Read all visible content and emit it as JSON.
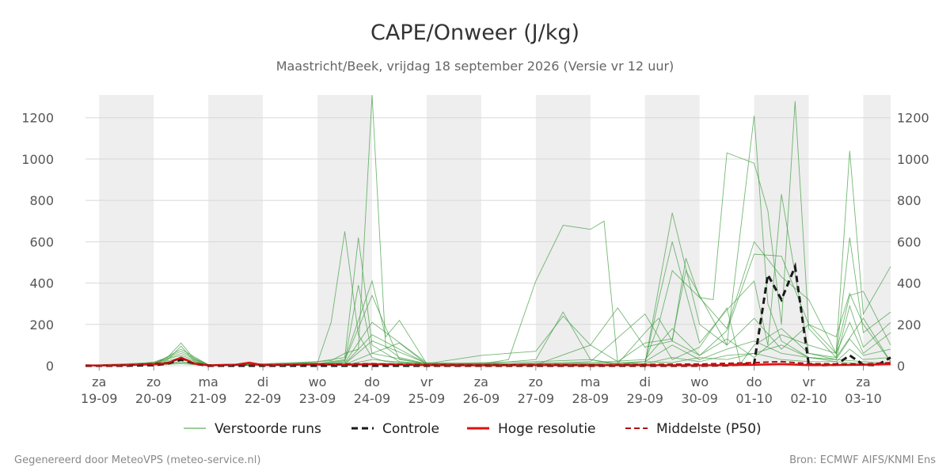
{
  "chart_data": {
    "type": "line",
    "title": "CAPE/Onweer (J/kg)",
    "subtitle": "Maastricht/Beek, vrijdag 18 september 2026 (Versie vr 12 uur)",
    "ylim": [
      0,
      1310
    ],
    "yticks": [
      0,
      200,
      400,
      600,
      800,
      1000,
      1200
    ],
    "xlim": [
      -0.25,
      14.5
    ],
    "x_tick_labels": [
      {
        "day": "za",
        "date": "19-09"
      },
      {
        "day": "zo",
        "date": "20-09"
      },
      {
        "day": "ma",
        "date": "21-09"
      },
      {
        "day": "di",
        "date": "22-09"
      },
      {
        "day": "wo",
        "date": "23-09"
      },
      {
        "day": "do",
        "date": "24-09"
      },
      {
        "day": "vr",
        "date": "25-09"
      },
      {
        "day": "za",
        "date": "26-09"
      },
      {
        "day": "zo",
        "date": "27-09"
      },
      {
        "day": "ma",
        "date": "28-09"
      },
      {
        "day": "di",
        "date": "29-09"
      },
      {
        "day": "wo",
        "date": "30-09"
      },
      {
        "day": "do",
        "date": "01-10"
      },
      {
        "day": "vr",
        "date": "02-10"
      },
      {
        "day": "za",
        "date": "03-10"
      }
    ],
    "shaded_bands": [
      [
        0,
        1
      ],
      [
        2,
        3
      ],
      [
        4,
        5
      ],
      [
        6,
        7
      ],
      [
        8,
        9
      ],
      [
        10,
        11
      ],
      [
        12,
        13
      ],
      [
        14,
        14.5
      ]
    ],
    "grid": true,
    "legend_position": "bottom",
    "series": [
      {
        "name": "Verstoorde runs",
        "kind": "ensemble",
        "color": "#3a9a3a",
        "members": [
          {
            "x": [
              -0.25,
              0,
              0.5,
              1,
              1.25,
              1.5,
              1.75,
              2,
              2.5,
              3,
              3.5,
              4,
              4.25,
              4.5,
              4.75,
              5,
              5.25,
              5.5,
              6,
              6.5,
              7,
              7.5,
              8,
              8.5,
              9,
              9.5,
              10,
              10.5,
              11,
              11.5,
              12,
              12.5,
              13,
              13.5,
              14,
              14.5
            ],
            "y": [
              2,
              3,
              5,
              12,
              28,
              95,
              20,
              5,
              8,
              5,
              10,
              20,
              25,
              60,
              80,
              1310,
              90,
              40,
              10,
              8,
              12,
              10,
              15,
              10,
              8,
              6,
              20,
              15,
              40,
              30,
              60,
              100,
              40,
              30,
              20,
              10
            ]
          },
          {
            "x": [
              -0.25,
              0.5,
              1,
              1.25,
              1.5,
              1.75,
              2,
              3,
              4,
              4.25,
              4.5,
              4.75,
              5,
              5.25,
              5.5,
              6,
              7,
              8,
              8.5,
              9,
              9.5,
              10,
              10.5,
              11,
              11.5,
              12,
              12.25,
              12.5,
              12.75,
              13,
              13.5,
              14,
              14.5
            ],
            "y": [
              2,
              5,
              18,
              40,
              110,
              30,
              6,
              8,
              15,
              210,
              650,
              150,
              40,
              20,
              15,
              10,
              8,
              10,
              5,
              8,
              5,
              10,
              740,
              200,
              100,
              1210,
              300,
              120,
              80,
              40,
              20,
              10,
              5
            ]
          },
          {
            "x": [
              -0.25,
              1,
              1.5,
              2,
              3,
              4,
              4.5,
              4.75,
              5,
              5.5,
              6,
              7,
              7.5,
              8,
              8.5,
              9,
              9.25,
              9.5,
              10,
              10.25,
              10.5,
              11,
              11.25,
              11.5,
              12,
              12.25,
              12.5,
              12.75,
              13,
              13.5,
              14,
              14.5
            ],
            "y": [
              1,
              10,
              60,
              5,
              10,
              20,
              40,
              620,
              100,
              20,
              10,
              8,
              30,
              410,
              680,
              660,
              700,
              10,
              20,
              200,
              460,
              330,
              320,
              1030,
              980,
              750,
              200,
              1280,
              180,
              40,
              230,
              20
            ]
          },
          {
            "x": [
              -0.25,
              1,
              1.5,
              2,
              4,
              4.5,
              5,
              5.25,
              5.5,
              6,
              7,
              8,
              8.5,
              9,
              9.5,
              10,
              10.5,
              11,
              11.5,
              12,
              12.5,
              13,
              13.5,
              13.75,
              14,
              14.5
            ],
            "y": [
              2,
              8,
              80,
              5,
              10,
              30,
              410,
              140,
              220,
              10,
              50,
              70,
              240,
              100,
              280,
              90,
              120,
              50,
              170,
              540,
              530,
              200,
              60,
              1040,
              250,
              480
            ]
          },
          {
            "x": [
              -0.25,
              1,
              1.5,
              2,
              4,
              4.5,
              4.75,
              5,
              5.5,
              6,
              7,
              8,
              9,
              9.5,
              10,
              10.25,
              10.5,
              11,
              11.5,
              12,
              12.25,
              12.5,
              13,
              13.5,
              13.75,
              14,
              14.5
            ],
            "y": [
              1,
              12,
              70,
              4,
              5,
              20,
              390,
              60,
              110,
              8,
              15,
              20,
              30,
              5,
              10,
              320,
              600,
              110,
              270,
              410,
              100,
              830,
              60,
              40,
              620,
              160,
              260
            ]
          },
          {
            "x": [
              -0.25,
              1,
              1.5,
              2,
              4,
              4.5,
              5,
              5.5,
              6,
              7,
              8,
              8.5,
              9,
              9.5,
              10,
              10.25,
              10.5,
              10.75,
              11,
              11.5,
              12,
              12.5,
              13,
              13.5,
              13.75,
              14,
              14.5
            ],
            "y": [
              2,
              15,
              50,
              3,
              8,
              25,
              340,
              30,
              10,
              8,
              30,
              260,
              30,
              10,
              160,
              230,
              120,
              520,
              330,
              180,
              600,
              430,
              320,
              60,
              340,
              360,
              100
            ]
          },
          {
            "x": [
              -0.25,
              1,
              1.5,
              2,
              4,
              4.5,
              5,
              6,
              7,
              8,
              9,
              9.5,
              10,
              10.5,
              10.75,
              11,
              11.5,
              12,
              12.5,
              13,
              13.5,
              13.75,
              14,
              14.5
            ],
            "y": [
              1,
              8,
              40,
              3,
              6,
              15,
              210,
              15,
              10,
              5,
              100,
              20,
              110,
              130,
              460,
              340,
              100,
              230,
              80,
              200,
              140,
              350,
              200,
              20
            ]
          },
          {
            "x": [
              -0.25,
              1,
              1.5,
              2,
              4,
              4.5,
              5,
              6,
              7,
              8,
              9,
              10,
              10.5,
              11,
              11.5,
              11.75,
              12,
              12.5,
              13,
              13.5,
              13.75,
              14,
              14.5
            ],
            "y": [
              1,
              6,
              30,
              2,
              5,
              10,
              150,
              10,
              5,
              10,
              20,
              250,
              30,
              90,
              280,
              10,
              100,
              180,
              60,
              30,
              290,
              90,
              210
            ]
          },
          {
            "x": [
              -0.25,
              1,
              1.5,
              2,
              4,
              4.5,
              5,
              6,
              7,
              8,
              9,
              10,
              10.5,
              11,
              11.5,
              12,
              12.5,
              13,
              13.5,
              13.75,
              14,
              14.5
            ],
            "y": [
              2,
              5,
              20,
              3,
              4,
              8,
              120,
              12,
              8,
              6,
              15,
              30,
              180,
              50,
              130,
              40,
              150,
              100,
              60,
              210,
              60,
              160
            ]
          },
          {
            "x": [
              -0.25,
              1,
              1.5,
              2,
              4,
              4.5,
              5,
              6,
              7,
              8,
              9,
              10,
              10.5,
              11,
              11.5,
              12,
              12.5,
              13,
              13.5,
              13.75,
              14,
              14.5
            ],
            "y": [
              1,
              4,
              15,
              2,
              3,
              6,
              60,
              8,
              6,
              4,
              10,
              20,
              100,
              30,
              80,
              120,
              60,
              40,
              30,
              130,
              50,
              80
            ]
          },
          {
            "x": [
              -0.25,
              1,
              1.5,
              2,
              4,
              4.5,
              5,
              6,
              7,
              8,
              9,
              10,
              10.5,
              11,
              11.5,
              12,
              12.5,
              13,
              13.5,
              13.75,
              14,
              14.5
            ],
            "y": [
              1,
              3,
              10,
              1,
              2,
              4,
              30,
              5,
              4,
              3,
              6,
              10,
              40,
              20,
              50,
              60,
              30,
              20,
              20,
              80,
              30,
              40
            ]
          }
        ]
      },
      {
        "name": "Controle",
        "kind": "dashed",
        "color": "#1a1a1a",
        "x": [
          -0.25,
          0,
          0.5,
          1,
          1.25,
          1.5,
          1.75,
          2,
          3,
          4,
          5,
          6,
          7,
          8,
          9,
          10,
          11,
          11.5,
          12,
          12.25,
          12.5,
          12.75,
          13,
          13.25,
          13.5,
          13.75,
          14,
          14.25,
          14.5
        ],
        "y": [
          0,
          0,
          0,
          3,
          10,
          30,
          10,
          0,
          0,
          0,
          0,
          0,
          0,
          0,
          0,
          0,
          0,
          2,
          10,
          440,
          320,
          480,
          5,
          3,
          5,
          50,
          5,
          3,
          40
        ]
      },
      {
        "name": "Hoge resolutie",
        "kind": "solid",
        "color": "#dd1111",
        "x": [
          -0.25,
          0,
          0.5,
          1,
          1.25,
          1.5,
          1.75,
          2,
          2.5,
          2.75,
          3,
          3.5,
          4,
          4.5,
          5,
          5.5,
          6,
          7,
          8,
          9,
          10,
          11,
          12,
          12.5,
          13,
          14,
          14.5
        ],
        "y": [
          2,
          1,
          3,
          8,
          12,
          40,
          10,
          2,
          5,
          15,
          3,
          5,
          8,
          5,
          8,
          6,
          3,
          2,
          3,
          2,
          3,
          2,
          5,
          8,
          3,
          5,
          8
        ]
      },
      {
        "name": "Middelste (P50)",
        "kind": "dashed",
        "color": "#aa1111",
        "x": [
          -0.25,
          0,
          0.5,
          1,
          1.25,
          1.5,
          1.75,
          2,
          3,
          4,
          5,
          6,
          7,
          8,
          9,
          10,
          11,
          12,
          12.5,
          13,
          14,
          14.5
        ],
        "y": [
          2,
          2,
          4,
          10,
          15,
          35,
          12,
          3,
          4,
          6,
          10,
          5,
          4,
          5,
          4,
          6,
          8,
          15,
          20,
          10,
          8,
          15
        ]
      }
    ]
  },
  "footer": {
    "left": "Gegenereerd door MeteoVPS (meteo-service.nl)",
    "right": "Bron: ECMWF AIFS/KNMI Ens"
  },
  "legend": {
    "items": [
      {
        "label": "Verstoorde runs"
      },
      {
        "label": "Controle"
      },
      {
        "label": "Hoge resolutie"
      },
      {
        "label": "Middelste (P50)"
      }
    ]
  }
}
